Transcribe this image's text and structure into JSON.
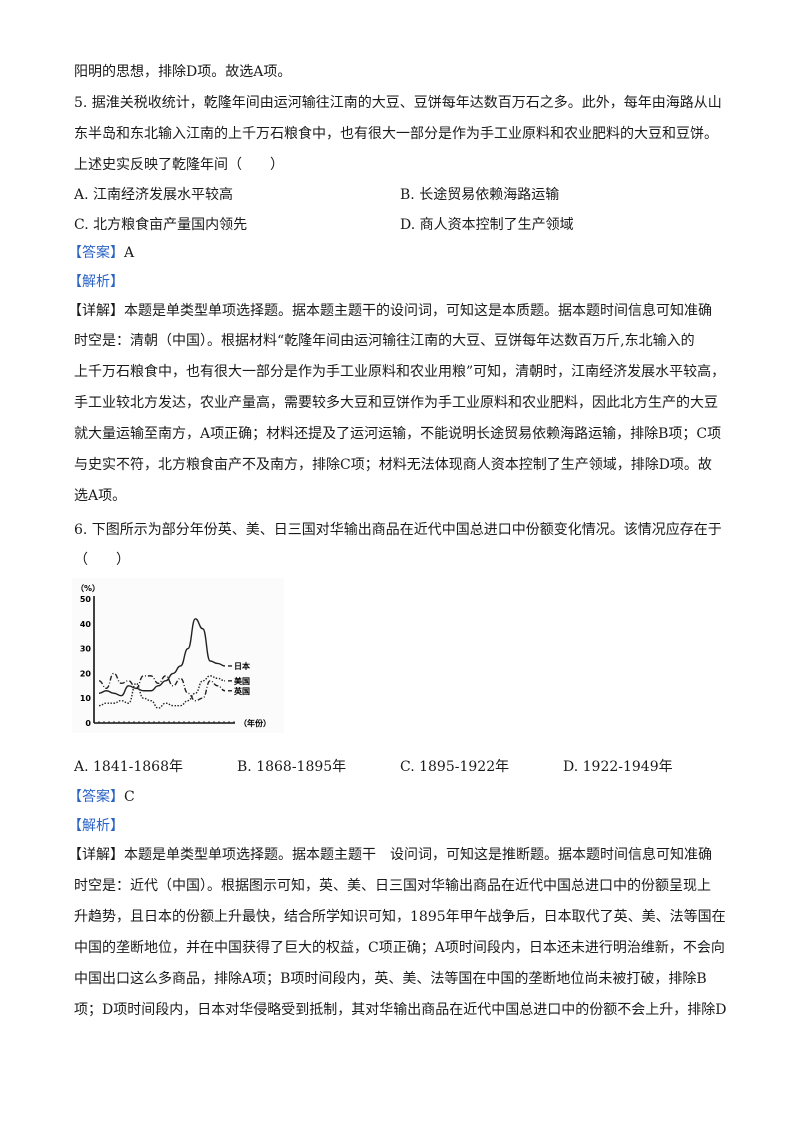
{
  "lines_top": [
    "阳明的思想，排除D项。故选A项。"
  ],
  "q5": {
    "stem": [
      "5. 据淮关税收统计，乾隆年间由运河输往江南的大豆、豆饼每年达数百万石之多。此外，每年由海路从山",
      "东半岛和东北输入江南的上千万石粮食中，也有很大一部分是作为手工业原料和农业肥料的大豆和豆饼。",
      "上述史实反映了乾隆年间（　　）"
    ],
    "options": [
      "A. 江南经济发展水平较高",
      "B. 长途贸易依赖海路运输",
      "C. 北方粮食亩产量国内领先",
      "D. 商人资本控制了生产领域"
    ],
    "answer_tag": "【答案】",
    "answer": "A",
    "analysis_tag": "【解析】",
    "detail_tag": "【详解】",
    "detail": [
      "本题是单类型单项选择题。据本题主题干的设问词，可知这是本质题。据本题时间信息可知准确",
      "时空是：清朝（中国）。根据材料“乾隆年间由运河输往江南的大豆、豆饼每年达数百万斤,东北输入的",
      "上千万石粮食中，也有很大一部分是作为手工业原料和农业用粮”可知，清朝时，江南经济发展水平较高，",
      "手工业较北方发达，农业产量高，需要较多大豆和豆饼作为手工业原料和农业肥料，因此北方生产的大豆",
      "就大量运输至南方，A项正确；材料还提及了运河运输，不能说明长途贸易依赖海路运输，排除B项；C项",
      "与史实不符，北方粮食亩产不及南方，排除C项；材料无法体现商人资本控制了生产领域，排除D项。故",
      "选A项。"
    ]
  },
  "q6": {
    "stem": [
      "6. 下图所示为部分年份英、美、日三国对华输出商品在近代中国总进口中份额变化情况。该情况应存在于",
      "（　　）"
    ],
    "options": [
      "A. 1841-1868年",
      "B. 1868-1895年",
      "C. 1895-1922年",
      "D. 1922-1949年"
    ],
    "answer_tag": "【答案】",
    "answer": "C",
    "analysis_tag": "【解析】",
    "detail_tag": "【详解】",
    "detail": [
      "本题是单类型单项选择题。据本题主题干　设问词，可知这是推断题。据本题时间信息可知准确",
      "时空是：近代（中国）。根据图示可知，英、美、日三国对华输出商品在近代中国总进口中的份额呈现上",
      "升趋势，且日本的份额上升最快，结合所学知识可知，1895年甲午战争后，日本取代了英、美、法等国在",
      "中国的垄断地位，并在中国获得了巨大的权益，C项正确；A项时间段内，日本还未进行明治维新，不会向",
      "中国出口这么多商品，排除A项；B项时间段内，英、美、法等国在中国的垄断地位尚未被打破，排除B",
      "项；D项时间段内，日本对华侵略受到抵制，其对华输出商品在近代中国总进口中的份额不会上升，排除D"
    ]
  },
  "chart_data": {
    "type": "line",
    "ylabel": "（%）",
    "xlabel": "（年份）",
    "yticks": [
      "0",
      "10",
      "20",
      "30",
      "40",
      "50"
    ],
    "ylim": [
      0,
      50
    ],
    "series": [
      {
        "name": "日本",
        "style": "solid",
        "values": [
          12,
          13,
          12,
          11,
          15,
          14,
          13,
          13,
          15,
          17,
          20,
          23,
          30,
          42,
          38,
          25,
          24,
          23
        ]
      },
      {
        "name": "美国",
        "style": "dotted",
        "values": [
          7,
          8,
          8,
          9,
          8,
          16,
          10,
          9,
          6,
          8,
          7,
          7,
          9,
          12,
          17,
          19,
          18,
          17
        ]
      },
      {
        "name": "英国",
        "style": "dashdot",
        "values": [
          17,
          14,
          20,
          16,
          17,
          14,
          19,
          19,
          16,
          19,
          15,
          18,
          12,
          9,
          10,
          17,
          15,
          13
        ]
      }
    ]
  },
  "colors": {
    "tag": "#2a63c4",
    "text": "#1a1a1a"
  }
}
